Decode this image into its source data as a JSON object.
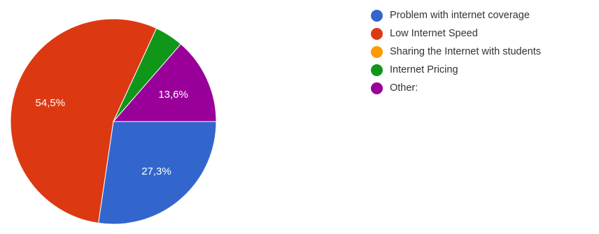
{
  "chart_data": {
    "type": "pie",
    "title": "",
    "legend_position": "right",
    "slices": [
      {
        "label": "Problem with internet coverage",
        "value": 27.3,
        "display": "27,3%",
        "color": "#3366cc"
      },
      {
        "label": "Low Internet Speed",
        "value": 54.5,
        "display": "54,5%",
        "color": "#dc3912"
      },
      {
        "label": "Sharing the Internet with students",
        "value": 0,
        "display": "",
        "color": "#ff9900"
      },
      {
        "label": "Internet Pricing",
        "value": 4.5,
        "display": "",
        "color": "#109618"
      },
      {
        "label": "Other:",
        "value": 13.6,
        "display": "13,6%",
        "color": "#990099"
      }
    ]
  }
}
